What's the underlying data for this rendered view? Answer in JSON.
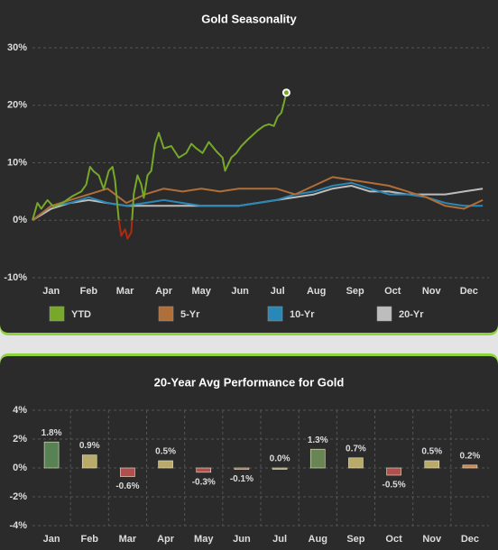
{
  "chart_data": [
    {
      "type": "line",
      "title": "Gold Seasonality",
      "xlim": [
        0,
        365
      ],
      "xticks": [
        {
          "value": 15,
          "label": "Jan"
        },
        {
          "value": 45,
          "label": "Feb"
        },
        {
          "value": 74,
          "label": "Mar"
        },
        {
          "value": 105,
          "label": "Apr"
        },
        {
          "value": 135,
          "label": "May"
        },
        {
          "value": 166,
          "label": "Jun"
        },
        {
          "value": 196,
          "label": "Jul"
        },
        {
          "value": 227,
          "label": "Aug"
        },
        {
          "value": 258,
          "label": "Sep"
        },
        {
          "value": 288,
          "label": "Oct"
        },
        {
          "value": 319,
          "label": "Nov"
        },
        {
          "value": 349,
          "label": "Dec"
        }
      ],
      "ylim": [
        -10,
        30
      ],
      "yticks": [
        {
          "value": -10,
          "label": "-10%"
        },
        {
          "value": 0,
          "label": "0%"
        },
        {
          "value": 10,
          "label": "10%"
        },
        {
          "value": 20,
          "label": "20%"
        },
        {
          "value": 30,
          "label": "30%"
        }
      ],
      "grid": true,
      "series": [
        {
          "name": "YTD",
          "color": "#76a82a",
          "negative_color": "#b02a10",
          "end_marker": true,
          "x": [
            0,
            4,
            7,
            12,
            17,
            24,
            32,
            39,
            43,
            46,
            49,
            53,
            57,
            61,
            64,
            66,
            69,
            71,
            74,
            76,
            79,
            81,
            84,
            87,
            89,
            92,
            95,
            98,
            101,
            105,
            111,
            117,
            123,
            127,
            131,
            136,
            141,
            147,
            152,
            154,
            159,
            163,
            167,
            172,
            176,
            180,
            185,
            189,
            193,
            196,
            199,
            201,
            203
          ],
          "values": [
            0,
            3,
            2,
            3.5,
            2.3,
            3,
            4.2,
            5,
            6.2,
            9.3,
            8.5,
            7.8,
            5.4,
            8.6,
            9.3,
            7,
            0,
            -2.7,
            -1.6,
            -3.2,
            -2.1,
            4.6,
            7.8,
            6.2,
            3.9,
            7.8,
            8.6,
            13.3,
            15.2,
            12.5,
            12.9,
            10.9,
            11.7,
            13.3,
            12.5,
            11.7,
            13.6,
            12,
            10.9,
            8.6,
            10.9,
            11.7,
            12.9,
            14,
            14.8,
            15.6,
            16.4,
            16.7,
            16.4,
            18,
            18.7,
            20.3,
            22.2
          ]
        },
        {
          "name": "5-Yr",
          "color": "#b06e38",
          "x": [
            0,
            15,
            30,
            45,
            60,
            75,
            90,
            105,
            120,
            135,
            150,
            165,
            180,
            195,
            210,
            225,
            240,
            255,
            270,
            285,
            300,
            315,
            330,
            345,
            360
          ],
          "values": [
            0,
            2.5,
            3.5,
            4.5,
            5.5,
            3,
            4.5,
            5.5,
            5,
            5.5,
            5,
            5.5,
            5.5,
            5.5,
            4.5,
            6,
            7.5,
            7,
            6.5,
            6,
            5,
            4,
            2.5,
            2,
            3.5
          ]
        },
        {
          "name": "10-Yr",
          "color": "#2a88b6",
          "x": [
            0,
            15,
            30,
            45,
            60,
            75,
            90,
            105,
            120,
            135,
            150,
            165,
            180,
            195,
            210,
            225,
            240,
            255,
            270,
            285,
            300,
            315,
            330,
            345,
            360
          ],
          "values": [
            0,
            2.5,
            3,
            4,
            3,
            2.5,
            3,
            3.5,
            3,
            2.5,
            2.5,
            2.5,
            3,
            3.5,
            4.5,
            5,
            6,
            6.5,
            5.5,
            4.5,
            4.5,
            4,
            3,
            2.5,
            2.5
          ]
        },
        {
          "name": "20-Yr",
          "color": "#bdbdbd",
          "x": [
            0,
            15,
            30,
            45,
            60,
            75,
            90,
            105,
            120,
            135,
            150,
            165,
            180,
            195,
            210,
            225,
            240,
            255,
            270,
            285,
            300,
            315,
            330,
            345,
            360
          ],
          "values": [
            0,
            2,
            3,
            3.5,
            3,
            2.5,
            2.5,
            2.5,
            2.5,
            2.5,
            2.5,
            2.5,
            3,
            3.5,
            4,
            4.5,
            5.5,
            6,
            5,
            5,
            4.5,
            4.5,
            4.5,
            5,
            5.5
          ]
        }
      ]
    },
    {
      "type": "bar",
      "title": "20-Year Avg Performance for Gold",
      "categories": [
        "Jan",
        "Feb",
        "Mar",
        "Apr",
        "May",
        "Jun",
        "Jul",
        "Aug",
        "Sep",
        "Oct",
        "Nov",
        "Dec"
      ],
      "values": [
        1.8,
        0.9,
        -0.6,
        0.5,
        -0.3,
        -0.1,
        0.0,
        1.3,
        0.7,
        -0.5,
        0.5,
        0.2
      ],
      "value_labels": [
        "1.8%",
        "0.9%",
        "-0.6%",
        "0.5%",
        "-0.3%",
        "-0.1%",
        "0.0%",
        "1.3%",
        "0.7%",
        "-0.5%",
        "0.5%",
        "0.2%"
      ],
      "colors": [
        "#5d8c58",
        "#c9b870",
        "#c05252",
        "#c9b870",
        "#c05252",
        "#c05252",
        "#d8905c",
        "#6f8f58",
        "#c9b870",
        "#c05252",
        "#c9b870",
        "#d8905c"
      ],
      "ylim": [
        -4,
        4
      ],
      "yticks": [
        {
          "value": -4,
          "label": "-4%"
        },
        {
          "value": -2,
          "label": "-2%"
        },
        {
          "value": 0,
          "label": "0%"
        },
        {
          "value": 2,
          "label": "2%"
        },
        {
          "value": 4,
          "label": "4%"
        }
      ],
      "grid": true
    }
  ]
}
